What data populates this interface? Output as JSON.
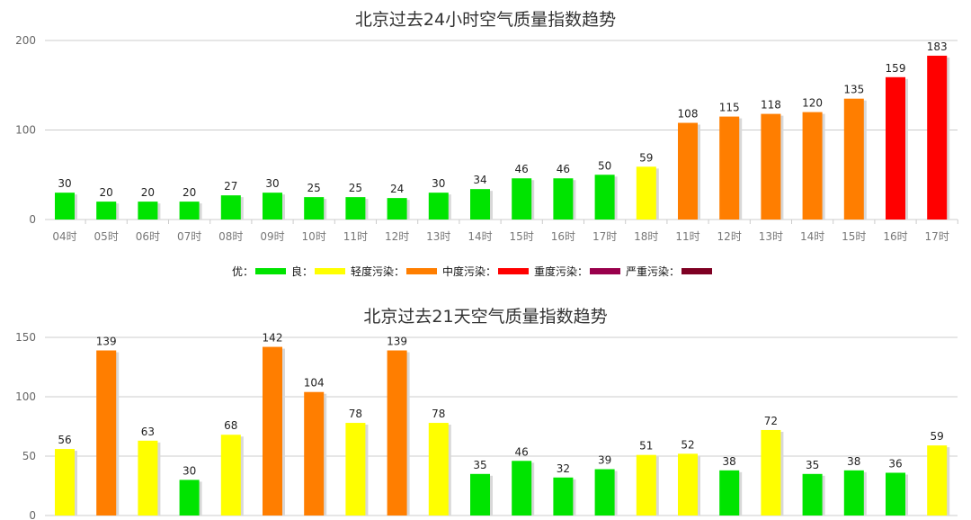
{
  "chart_data": [
    {
      "type": "bar",
      "title": "北京过去24小时空气质量指数趋势",
      "categories": [
        "04时",
        "05时",
        "06时",
        "07时",
        "08时",
        "09时",
        "10时",
        "11时",
        "12时",
        "13时",
        "14时",
        "15时",
        "16时",
        "17时",
        "18时",
        "11时",
        "12时",
        "13时",
        "14时",
        "15时",
        "16时",
        "17时"
      ],
      "values": [
        30,
        20,
        20,
        20,
        27,
        30,
        25,
        25,
        24,
        30,
        34,
        46,
        46,
        50,
        59,
        108,
        115,
        118,
        120,
        135,
        159,
        183
      ],
      "levels": [
        "good",
        "good",
        "good",
        "good",
        "good",
        "good",
        "good",
        "good",
        "good",
        "good",
        "good",
        "good",
        "good",
        "good",
        "moderate",
        "unhealthy-sensitive",
        "unhealthy-sensitive",
        "unhealthy-sensitive",
        "unhealthy-sensitive",
        "unhealthy-sensitive",
        "unhealthy",
        "unhealthy"
      ],
      "yticks": [
        0,
        100,
        200
      ],
      "ylim": [
        0,
        200
      ],
      "grid": true
    },
    {
      "type": "bar",
      "title": "北京过去21天空气质量指数趋势",
      "values": [
        56,
        139,
        63,
        30,
        68,
        142,
        104,
        78,
        139,
        78,
        35,
        46,
        32,
        39,
        51,
        52,
        38,
        72,
        35,
        38,
        36,
        59
      ],
      "levels": [
        "moderate",
        "unhealthy-sensitive",
        "moderate",
        "good",
        "moderate",
        "unhealthy-sensitive",
        "unhealthy-sensitive",
        "moderate",
        "unhealthy-sensitive",
        "moderate",
        "good",
        "good",
        "good",
        "good",
        "moderate",
        "moderate",
        "good",
        "moderate",
        "good",
        "good",
        "good",
        "moderate"
      ],
      "yticks": [
        0,
        50,
        100,
        150
      ],
      "ylim": [
        0,
        150
      ],
      "grid": true
    }
  ],
  "legend": [
    {
      "label": "优：",
      "key": "good"
    },
    {
      "label": "良：",
      "key": "moderate"
    },
    {
      "label": "轻度污染：",
      "key": "unhealthy-sensitive"
    },
    {
      "label": "中度污染：",
      "key": "unhealthy"
    },
    {
      "label": "重度污染：",
      "key": "very-unhealthy"
    },
    {
      "label": "严重污染：",
      "key": "hazardous"
    }
  ],
  "colors": {
    "good": "#00e400",
    "moderate": "#ffff00",
    "unhealthy-sensitive": "#ff7e00",
    "unhealthy": "#ff0000",
    "very-unhealthy": "#99004c",
    "hazardous": "#7e0023"
  }
}
